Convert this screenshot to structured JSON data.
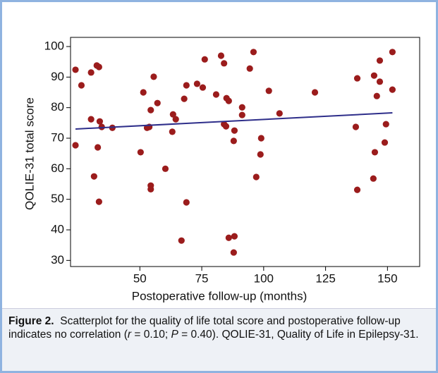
{
  "chart_data": {
    "type": "scatter",
    "xlabel": "Postoperative follow-up (months)",
    "ylabel": "QOLIE-31 total score",
    "xlim": [
      22,
      163
    ],
    "ylim": [
      28,
      103
    ],
    "xticks": [
      50,
      75,
      100,
      125,
      150
    ],
    "yticks": [
      30,
      40,
      50,
      60,
      70,
      80,
      90,
      100
    ],
    "series": [
      {
        "color": "#9b1c1c",
        "x": [
          24,
          24,
          26.4,
          30.3,
          30.3,
          31.5,
          32.6,
          33.5,
          33,
          33.5,
          33.8,
          34.6,
          38.9,
          50.3,
          51.4,
          52.9,
          53.8,
          54.4,
          54.4,
          54.4,
          55.6,
          57.1,
          60.3,
          63.4,
          63.1,
          64.5,
          66.8,
          67.9,
          68.8,
          68.8,
          73.1,
          75.4,
          76.2,
          80.8,
          82.8,
          84,
          84,
          84.8,
          85,
          85.9,
          85.9,
          87.9,
          88.2,
          88.2,
          87.9,
          91.3,
          91.3,
          94.4,
          95.9,
          97,
          99,
          98.7,
          102.1,
          106.4,
          120.7,
          137.2,
          137.8,
          137.8,
          144.9,
          146.9,
          146.9,
          144.6,
          144.3,
          145.7,
          148.9,
          149.4,
          152,
          152
        ],
        "values": [
          92.4,
          67.7,
          87.3,
          91.5,
          76.2,
          57.5,
          93.8,
          93.3,
          67,
          49.2,
          75.5,
          73.7,
          73.4,
          65.4,
          85,
          73.4,
          73.7,
          79.2,
          54.5,
          53.3,
          90.1,
          81.5,
          60,
          77.8,
          72.1,
          76.2,
          36.5,
          82.9,
          87.3,
          49,
          87.8,
          86.6,
          95.8,
          84.3,
          97,
          94.5,
          74.6,
          73.9,
          83.1,
          82.2,
          37.4,
          69.1,
          72.5,
          37.9,
          32.6,
          80.1,
          77.6,
          92.8,
          98.2,
          57.3,
          70,
          64.7,
          85.5,
          78.1,
          85,
          73.7,
          89.6,
          53.1,
          65.4,
          95.4,
          88.5,
          90.5,
          56.8,
          83.8,
          68.6,
          74.6,
          98.2,
          85.9
        ]
      }
    ],
    "trend": {
      "color": "#2e2e8a",
      "x": [
        24,
        152
      ],
      "values": [
        73,
        78.3
      ]
    }
  },
  "caption": {
    "label": "Figure 2.",
    "parts": [
      "Scatterplot for the quality of life total score and postoperative follow-up indicates no correlation (",
      "r",
      " = 0.10; ",
      "P",
      " = 0.40). QOLIE-31, Quality of Life in Epilepsy-31."
    ]
  }
}
